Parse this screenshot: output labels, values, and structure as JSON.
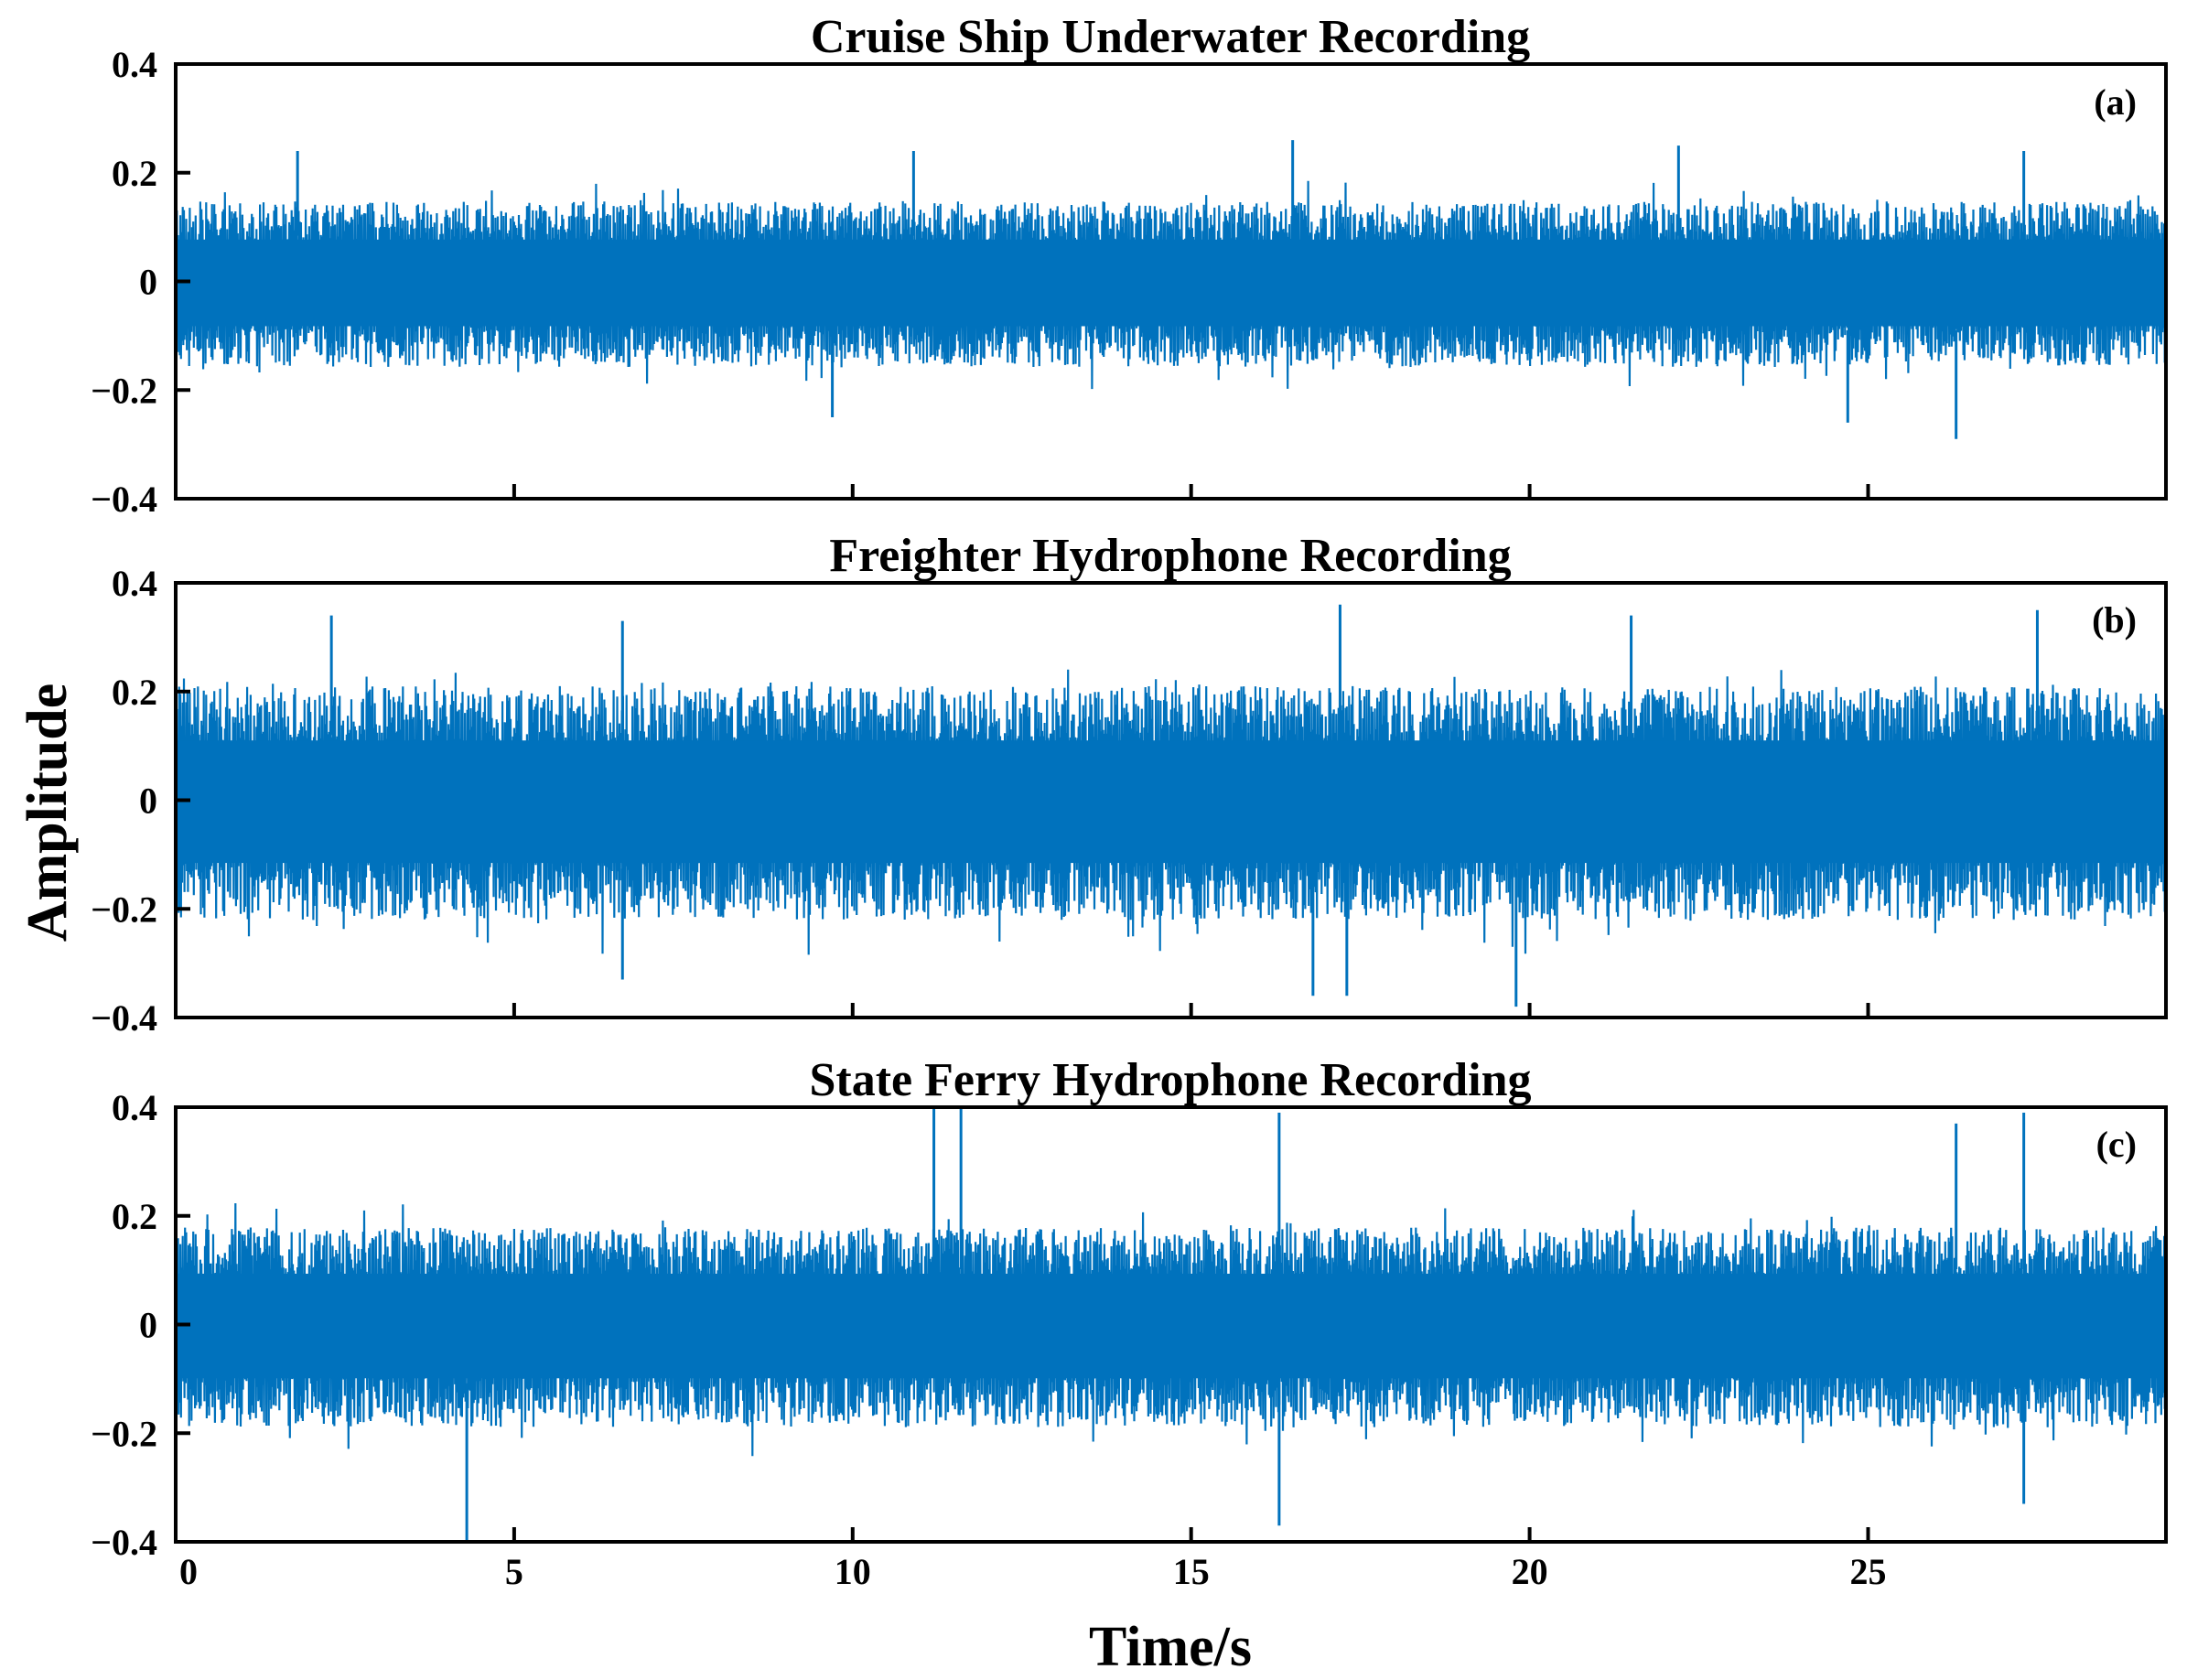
{
  "chart_data": {
    "type": "line",
    "shared_xlabel": "Time/s",
    "shared_ylabel": "Amplitude",
    "line_color": "#0072BD",
    "panels": [
      {
        "title": "Cruise Ship Underwater Recording",
        "tag": "(a)",
        "xlim": [
          0,
          29.4
        ],
        "ylim": [
          -0.4,
          0.4
        ],
        "xticks": [
          0,
          5,
          10,
          15,
          20,
          25
        ],
        "xtick_labels": [],
        "yticks": [
          -0.4,
          -0.2,
          0,
          0.2,
          0.4
        ],
        "ytick_labels": [
          "−0.4",
          "−0.2",
          "0",
          "0.2",
          "0.4"
        ],
        "envelope": {
          "x": [
            0,
            29.4
          ],
          "upper_typical": 0.14,
          "lower_typical": -0.15
        },
        "peaks": [
          {
            "x": 1.8,
            "y": 0.24
          },
          {
            "x": 10.9,
            "y": 0.24
          },
          {
            "x": 16.5,
            "y": 0.26
          },
          {
            "x": 22.2,
            "y": 0.25
          },
          {
            "x": 27.3,
            "y": 0.24
          },
          {
            "x": 9.7,
            "y": -0.25
          },
          {
            "x": 24.7,
            "y": -0.26
          },
          {
            "x": 26.3,
            "y": -0.29
          }
        ]
      },
      {
        "title": "Freighter Hydrophone Recording",
        "tag": "(b)",
        "xlim": [
          0,
          29.4
        ],
        "ylim": [
          -0.4,
          0.4
        ],
        "xticks": [
          0,
          5,
          10,
          15,
          20,
          25
        ],
        "xtick_labels": [],
        "yticks": [
          -0.4,
          -0.2,
          0,
          0.2,
          0.4
        ],
        "ytick_labels": [
          "−0.4",
          "−0.2",
          "0",
          "0.2",
          "0.4"
        ],
        "envelope": {
          "x": [
            0,
            29.4
          ],
          "upper_typical": 0.2,
          "lower_typical": -0.21
        },
        "peaks": [
          {
            "x": 2.3,
            "y": 0.34
          },
          {
            "x": 6.6,
            "y": 0.33
          },
          {
            "x": 17.2,
            "y": 0.36
          },
          {
            "x": 21.5,
            "y": 0.34
          },
          {
            "x": 27.5,
            "y": 0.35
          },
          {
            "x": 6.6,
            "y": -0.33
          },
          {
            "x": 16.8,
            "y": -0.36
          },
          {
            "x": 17.3,
            "y": -0.36
          },
          {
            "x": 19.8,
            "y": -0.38
          }
        ]
      },
      {
        "title": "State Ferry Hydrophone Recording",
        "tag": "(c)",
        "xlim": [
          0,
          29.4
        ],
        "ylim": [
          -0.4,
          0.4
        ],
        "xticks": [
          0,
          5,
          10,
          15,
          20,
          25
        ],
        "xtick_labels": [
          "0",
          "5",
          "10",
          "15",
          "20",
          "25"
        ],
        "yticks": [
          -0.4,
          -0.2,
          0,
          0.2,
          0.4
        ],
        "ytick_labels": [
          "−0.4",
          "−0.2",
          "0",
          "0.2",
          "0.4"
        ],
        "envelope": {
          "x": [
            0,
            29.4
          ],
          "upper_typical": 0.17,
          "lower_typical": -0.18
        },
        "peaks": [
          {
            "x": 11.2,
            "y": 0.4
          },
          {
            "x": 11.6,
            "y": 0.4
          },
          {
            "x": 16.3,
            "y": 0.39
          },
          {
            "x": 26.3,
            "y": 0.37
          },
          {
            "x": 27.3,
            "y": 0.39
          },
          {
            "x": 4.3,
            "y": -0.4
          },
          {
            "x": 16.3,
            "y": -0.37
          },
          {
            "x": 27.3,
            "y": -0.33
          }
        ]
      }
    ]
  }
}
